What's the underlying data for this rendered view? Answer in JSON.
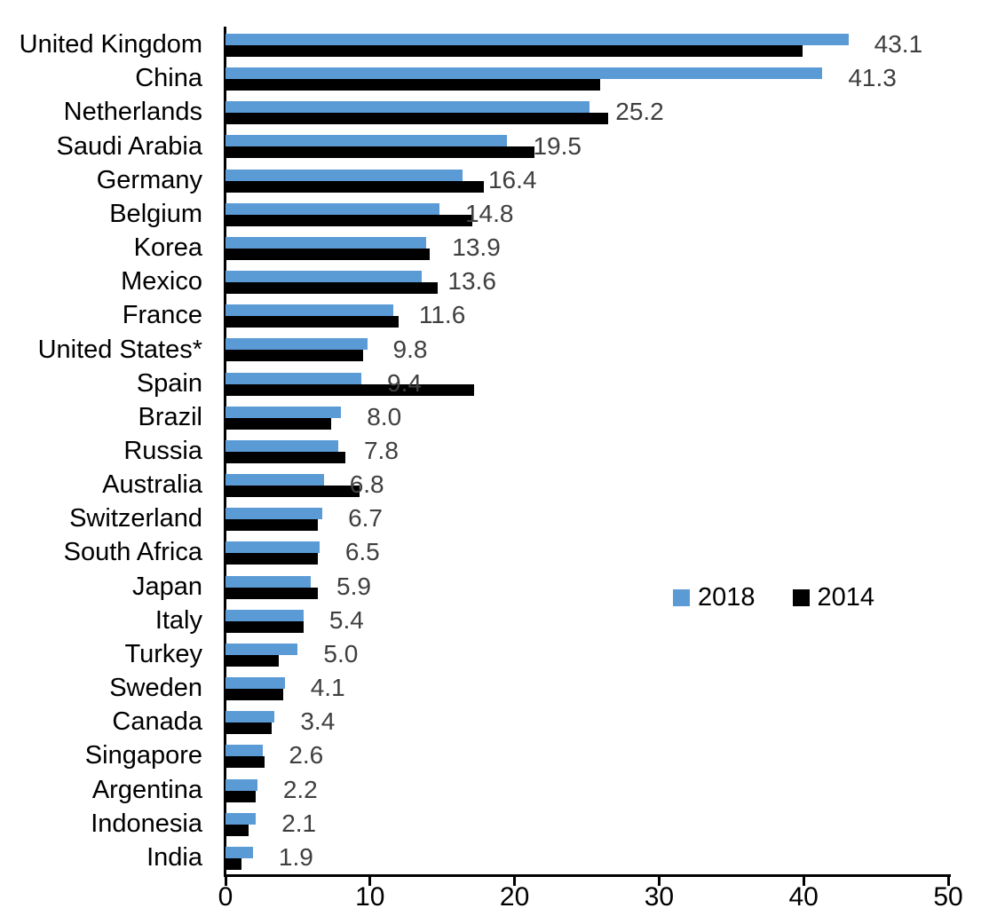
{
  "chart_data": {
    "type": "bar",
    "orientation": "horizontal",
    "title": "",
    "xlabel": "",
    "ylabel": "",
    "xlim": [
      0,
      50
    ],
    "x_ticks": [
      0,
      10,
      20,
      30,
      40,
      50
    ],
    "grid": false,
    "legend_position": "middle-right",
    "categories": [
      "United Kingdom",
      "China",
      "Netherlands",
      "Saudi Arabia",
      "Germany",
      "Belgium",
      "Korea",
      "Mexico",
      "France",
      "United States*",
      "Spain",
      "Brazil",
      "Russia",
      "Australia",
      "Switzerland",
      "South Africa",
      "Japan",
      "Italy",
      "Turkey",
      "Sweden",
      "Canada",
      "Singapore",
      "Argentina",
      "Indonesia",
      "India"
    ],
    "series": [
      {
        "name": "2018",
        "color": "#5B9BD5",
        "values": [
          43.1,
          41.3,
          25.2,
          19.5,
          16.4,
          14.8,
          13.9,
          13.6,
          11.6,
          9.8,
          9.4,
          8.0,
          7.8,
          6.8,
          6.7,
          6.5,
          5.9,
          5.4,
          5.0,
          4.1,
          3.4,
          2.6,
          2.2,
          2.1,
          1.9
        ]
      },
      {
        "name": "2014",
        "color": "#000000",
        "values": [
          39.9,
          25.9,
          26.5,
          21.4,
          17.9,
          17.1,
          14.1,
          14.7,
          12.0,
          9.5,
          17.2,
          7.3,
          8.3,
          9.3,
          6.4,
          6.4,
          6.4,
          5.4,
          3.7,
          4.0,
          3.2,
          2.7,
          2.1,
          1.6,
          1.1
        ]
      }
    ],
    "value_labels": [
      "43.1",
      "41.3",
      "25.2",
      "19.5",
      "16.4",
      "14.8",
      "13.9",
      "13.6",
      "11.6",
      "9.8",
      "9.4",
      "8.0",
      "7.8",
      "6.8",
      "6.7",
      "6.5",
      "5.9",
      "5.4",
      "5.0",
      "4.1",
      "3.4",
      "2.6",
      "2.2",
      "2.1",
      "1.9"
    ],
    "value_label_series": "2018",
    "value_label_color": "#3f3f3f",
    "axis_color": "#000000"
  }
}
